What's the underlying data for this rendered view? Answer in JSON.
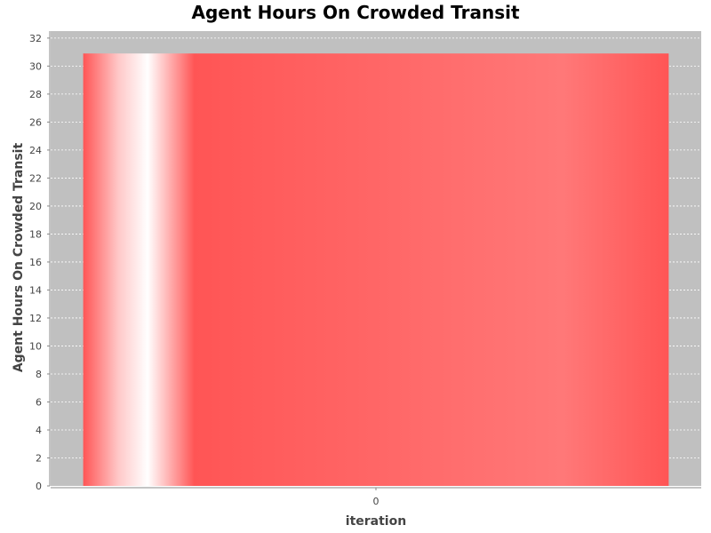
{
  "chart_data": {
    "type": "bar",
    "title": "Agent Hours On Crowded Transit",
    "xlabel": "iteration",
    "ylabel": "Agent Hours On Crowded Transit",
    "categories": [
      "0"
    ],
    "series": [
      {
        "values": [
          30.9
        ]
      }
    ],
    "ylim": [
      0,
      32.5
    ],
    "yticks": [
      0,
      2,
      4,
      6,
      8,
      10,
      12,
      14,
      16,
      18,
      20,
      22,
      24,
      26,
      28,
      30,
      32
    ],
    "grid": true,
    "legend": "none",
    "colors": {
      "bar": "#ff5555",
      "plot_background": "#c0c0c0",
      "gridline": "#ffffff",
      "highlight": "#ffffff"
    }
  }
}
